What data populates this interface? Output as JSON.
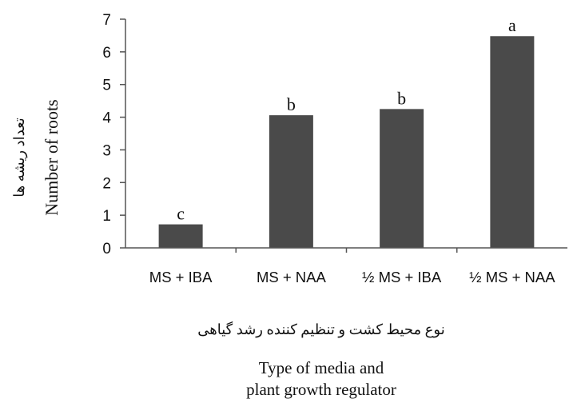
{
  "chart_data": {
    "type": "bar",
    "categories": [
      "MS + IBA",
      "MS + NAA",
      "½ MS + IBA",
      "½ MS + NAA"
    ],
    "values": [
      0.72,
      4.06,
      4.25,
      6.48
    ],
    "significance_letters": [
      "c",
      "b",
      "b",
      "a"
    ],
    "ylim": [
      0,
      7
    ],
    "yticks": [
      0,
      1,
      2,
      3,
      4,
      5,
      6,
      7
    ],
    "ylabel": "Number of roots",
    "ylabel_persian": "تعداد ریشه ها",
    "xlabel_persian": "نوع محیط کشت و تنظیم کننده رشد گیاهی",
    "xlabel_lines": [
      "Type of media and",
      "plant growth regulator"
    ],
    "grid": false,
    "bar_color": "#4a4a4a"
  }
}
